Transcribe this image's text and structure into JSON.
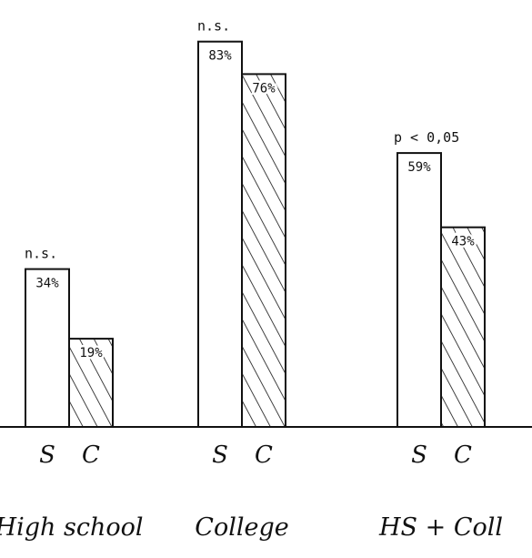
{
  "chart_data": {
    "type": "bar",
    "title": "",
    "xlabel": "",
    "ylabel": "",
    "ylim": [
      0,
      100
    ],
    "grid": false,
    "legend": "none",
    "series_labels": [
      "S",
      "C"
    ],
    "groups": [
      {
        "name": "High school",
        "values": [
          34,
          19
        ],
        "value_labels": [
          "34%",
          "19%"
        ],
        "significance": "n.s."
      },
      {
        "name": "College",
        "values": [
          83,
          76
        ],
        "value_labels": [
          "83%",
          "76%"
        ],
        "significance": "n.s."
      },
      {
        "name": "HS + Coll",
        "values": [
          59,
          43
        ],
        "value_labels": [
          "59%",
          "43%"
        ],
        "significance": "p < 0,05"
      }
    ],
    "fill_patterns": {
      "S": "open",
      "C": "hatched"
    }
  }
}
